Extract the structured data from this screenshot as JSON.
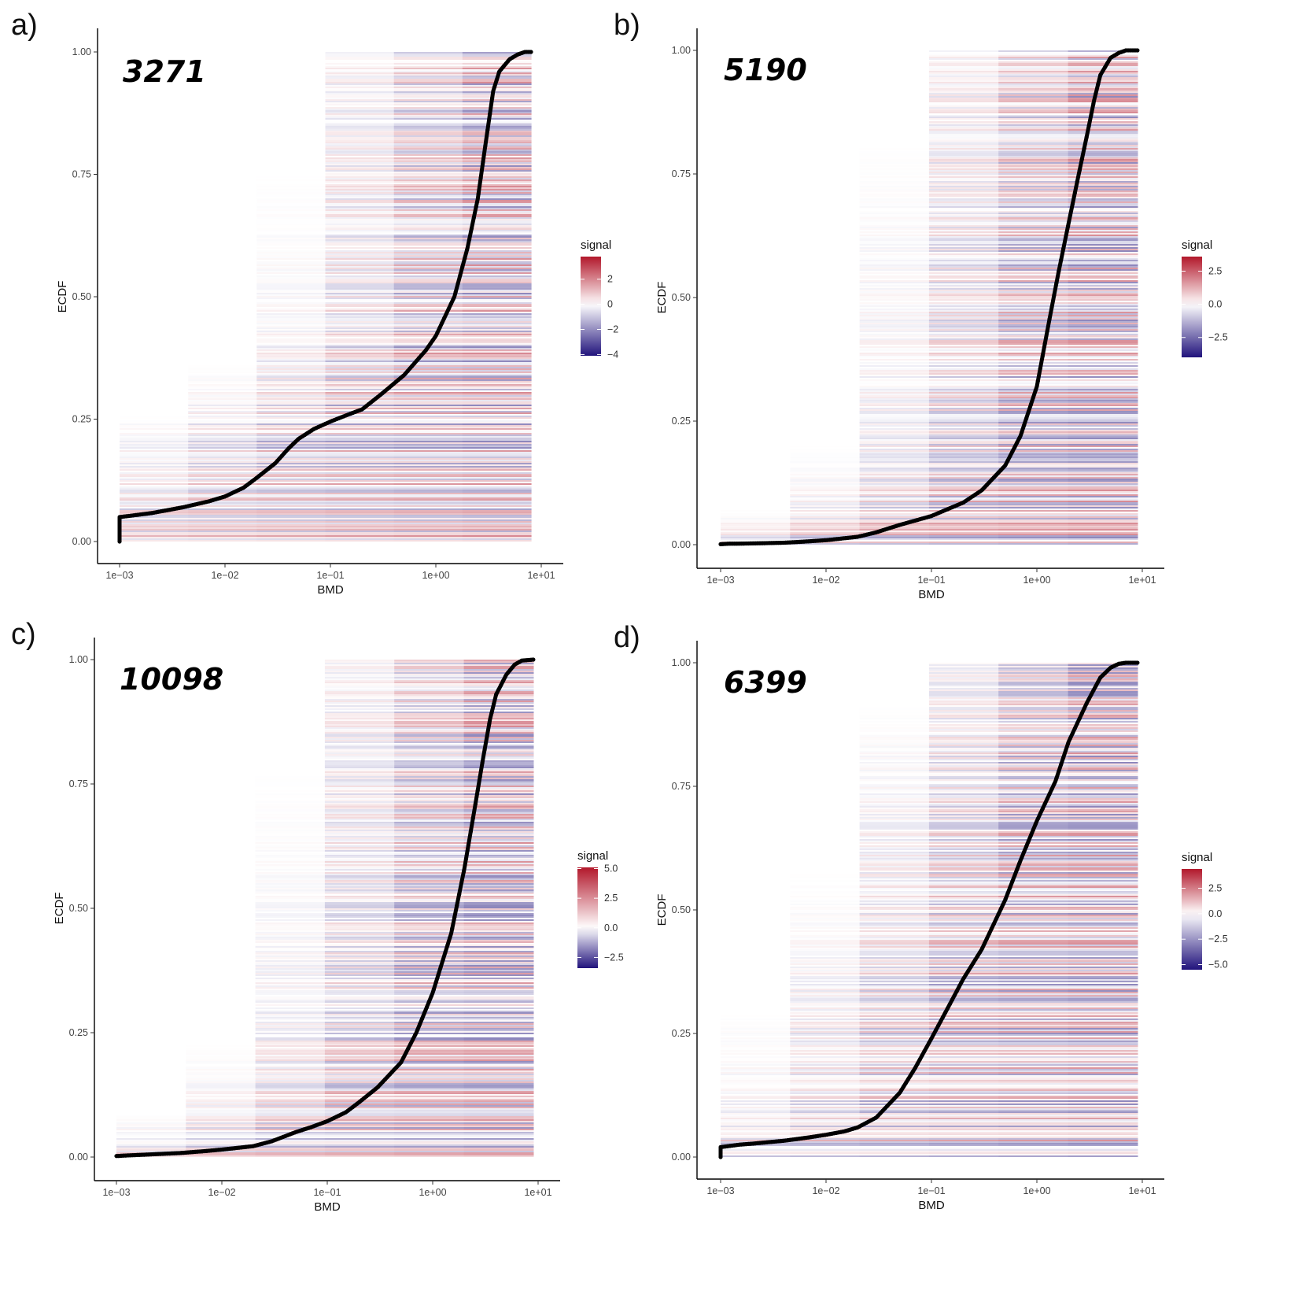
{
  "colors": {
    "high": "#b2182b",
    "mid": "#ffffff",
    "low": "#21137c",
    "curve": "#000000",
    "axis": "#000000"
  },
  "chart_data": [
    {
      "panel_label": "a)",
      "count_label": "3271",
      "type": "scatter",
      "background": "heatmap",
      "xlabel": "BMD",
      "ylabel": "ECDF",
      "x_scale": "log10",
      "xlim": [
        0.001,
        10
      ],
      "ylim": [
        0,
        1
      ],
      "x_ticks": [
        "1e−03",
        "1e−02",
        "1e−01",
        "1e+00",
        "1e+01"
      ],
      "y_ticks": [
        "0.00",
        "0.25",
        "0.50",
        "0.75",
        "1.00"
      ],
      "grid": false,
      "legend": {
        "title": "signal",
        "position": "right",
        "ticks": [
          "2",
          "0",
          "−2",
          "−4"
        ],
        "tick_values": [
          2,
          0,
          -2,
          -4
        ],
        "range": [
          -4.1,
          3.8
        ]
      },
      "ecdf_points": [
        [
          0.001,
          0.0
        ],
        [
          0.001,
          0.05
        ],
        [
          0.0012,
          0.052
        ],
        [
          0.002,
          0.058
        ],
        [
          0.004,
          0.07
        ],
        [
          0.007,
          0.082
        ],
        [
          0.01,
          0.092
        ],
        [
          0.015,
          0.11
        ],
        [
          0.02,
          0.13
        ],
        [
          0.03,
          0.16
        ],
        [
          0.04,
          0.19
        ],
        [
          0.05,
          0.21
        ],
        [
          0.07,
          0.23
        ],
        [
          0.1,
          0.245
        ],
        [
          0.15,
          0.26
        ],
        [
          0.2,
          0.27
        ],
        [
          0.3,
          0.3
        ],
        [
          0.5,
          0.34
        ],
        [
          0.8,
          0.39
        ],
        [
          1.0,
          0.42
        ],
        [
          1.5,
          0.5
        ],
        [
          2.0,
          0.6
        ],
        [
          2.5,
          0.7
        ],
        [
          3.0,
          0.82
        ],
        [
          3.5,
          0.92
        ],
        [
          4.0,
          0.96
        ],
        [
          5.0,
          0.985
        ],
        [
          6.0,
          0.995
        ],
        [
          7.0,
          1.0
        ],
        [
          8.0,
          1.0
        ]
      ]
    },
    {
      "panel_label": "b)",
      "count_label": "5190",
      "type": "scatter",
      "background": "heatmap",
      "xlabel": "BMD",
      "ylabel": "ECDF",
      "x_scale": "log10",
      "xlim": [
        0.001,
        10
      ],
      "ylim": [
        0,
        1
      ],
      "x_ticks": [
        "1e−03",
        "1e−02",
        "1e−01",
        "1e+00",
        "1e+01"
      ],
      "y_ticks": [
        "0.00",
        "0.25",
        "0.50",
        "0.75",
        "1.00"
      ],
      "grid": false,
      "legend": {
        "title": "signal",
        "position": "right",
        "ticks": [
          "2.5",
          "0.0",
          "−2.5"
        ],
        "tick_values": [
          2.5,
          0,
          -2.5
        ],
        "range": [
          -4.0,
          3.6
        ]
      },
      "ecdf_points": [
        [
          0.001,
          0.001
        ],
        [
          0.0012,
          0.002
        ],
        [
          0.0014,
          0.002
        ],
        [
          0.0025,
          0.003
        ],
        [
          0.004,
          0.004
        ],
        [
          0.006,
          0.006
        ],
        [
          0.01,
          0.009
        ],
        [
          0.02,
          0.016
        ],
        [
          0.03,
          0.025
        ],
        [
          0.05,
          0.04
        ],
        [
          0.1,
          0.058
        ],
        [
          0.2,
          0.085
        ],
        [
          0.3,
          0.11
        ],
        [
          0.5,
          0.16
        ],
        [
          0.7,
          0.22
        ],
        [
          1.0,
          0.32
        ],
        [
          1.3,
          0.45
        ],
        [
          1.6,
          0.55
        ],
        [
          2.0,
          0.65
        ],
        [
          2.5,
          0.75
        ],
        [
          3.0,
          0.83
        ],
        [
          3.5,
          0.9
        ],
        [
          4.0,
          0.95
        ],
        [
          5.0,
          0.985
        ],
        [
          6.0,
          0.995
        ],
        [
          7.0,
          1.0
        ],
        [
          9.0,
          1.0
        ]
      ]
    },
    {
      "panel_label": "c)",
      "count_label": "10098",
      "type": "scatter",
      "background": "heatmap",
      "xlabel": "BMD",
      "ylabel": "ECDF",
      "x_scale": "log10",
      "xlim": [
        0.001,
        10
      ],
      "ylim": [
        0,
        1
      ],
      "x_ticks": [
        "1e−03",
        "1e−02",
        "1e−01",
        "1e+00",
        "1e+01"
      ],
      "y_ticks": [
        "0.00",
        "0.25",
        "0.50",
        "0.75",
        "1.00"
      ],
      "grid": false,
      "legend": {
        "title": "signal",
        "position": "right",
        "ticks": [
          "5.0",
          "2.5",
          "0.0",
          "−2.5"
        ],
        "tick_values": [
          5,
          2.5,
          0,
          -2.5
        ],
        "range": [
          -3.4,
          5.1
        ]
      },
      "ecdf_points": [
        [
          0.001,
          0.002
        ],
        [
          0.0012,
          0.003
        ],
        [
          0.002,
          0.005
        ],
        [
          0.004,
          0.008
        ],
        [
          0.007,
          0.012
        ],
        [
          0.01,
          0.015
        ],
        [
          0.02,
          0.022
        ],
        [
          0.03,
          0.032
        ],
        [
          0.05,
          0.05
        ],
        [
          0.07,
          0.06
        ],
        [
          0.1,
          0.072
        ],
        [
          0.15,
          0.09
        ],
        [
          0.2,
          0.11
        ],
        [
          0.3,
          0.14
        ],
        [
          0.5,
          0.19
        ],
        [
          0.7,
          0.25
        ],
        [
          1.0,
          0.33
        ],
        [
          1.5,
          0.45
        ],
        [
          2.0,
          0.58
        ],
        [
          2.5,
          0.7
        ],
        [
          3.0,
          0.8
        ],
        [
          3.5,
          0.88
        ],
        [
          4.0,
          0.93
        ],
        [
          5.0,
          0.97
        ],
        [
          6.0,
          0.99
        ],
        [
          7.0,
          0.998
        ],
        [
          9.0,
          1.0
        ]
      ]
    },
    {
      "panel_label": "d)",
      "count_label": "6399",
      "type": "scatter",
      "background": "heatmap",
      "xlabel": "BMD",
      "ylabel": "ECDF",
      "x_scale": "log10",
      "xlim": [
        0.001,
        10
      ],
      "ylim": [
        0,
        1
      ],
      "x_ticks": [
        "1e−03",
        "1e−02",
        "1e−01",
        "1e+00",
        "1e+01"
      ],
      "y_ticks": [
        "0.00",
        "0.25",
        "0.50",
        "0.75",
        "1.00"
      ],
      "grid": false,
      "legend": {
        "title": "signal",
        "position": "right",
        "ticks": [
          "2.5",
          "0.0",
          "−2.5",
          "−5.0"
        ],
        "tick_values": [
          2.5,
          0,
          -2.5,
          -5
        ],
        "range": [
          -5.5,
          4.4
        ]
      },
      "ecdf_points": [
        [
          0.001,
          0.0
        ],
        [
          0.001,
          0.02
        ],
        [
          0.0015,
          0.025
        ],
        [
          0.002,
          0.027
        ],
        [
          0.004,
          0.033
        ],
        [
          0.007,
          0.04
        ],
        [
          0.01,
          0.045
        ],
        [
          0.015,
          0.052
        ],
        [
          0.02,
          0.06
        ],
        [
          0.03,
          0.08
        ],
        [
          0.05,
          0.13
        ],
        [
          0.07,
          0.18
        ],
        [
          0.1,
          0.24
        ],
        [
          0.15,
          0.31
        ],
        [
          0.2,
          0.36
        ],
        [
          0.3,
          0.42
        ],
        [
          0.5,
          0.52
        ],
        [
          0.7,
          0.6
        ],
        [
          1.0,
          0.68
        ],
        [
          1.5,
          0.76
        ],
        [
          2.0,
          0.84
        ],
        [
          3.0,
          0.92
        ],
        [
          4.0,
          0.97
        ],
        [
          5.0,
          0.99
        ],
        [
          6.0,
          0.998
        ],
        [
          7.0,
          1.0
        ],
        [
          9.0,
          1.0
        ]
      ]
    }
  ]
}
